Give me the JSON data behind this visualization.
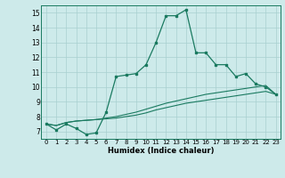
{
  "xlabel": "Humidex (Indice chaleur)",
  "x": [
    0,
    1,
    2,
    3,
    4,
    5,
    6,
    7,
    8,
    9,
    10,
    11,
    12,
    13,
    14,
    15,
    16,
    17,
    18,
    19,
    20,
    21,
    22,
    23
  ],
  "y_main": [
    7.5,
    7.1,
    7.5,
    7.2,
    6.8,
    6.9,
    8.3,
    10.7,
    10.8,
    10.9,
    11.5,
    13.0,
    14.8,
    14.8,
    15.2,
    12.3,
    12.3,
    11.5,
    11.5,
    10.7,
    10.9,
    10.2,
    10.0,
    9.5
  ],
  "y_line1": [
    7.5,
    7.4,
    7.6,
    7.7,
    7.75,
    7.8,
    7.9,
    8.0,
    8.15,
    8.3,
    8.5,
    8.7,
    8.9,
    9.05,
    9.2,
    9.35,
    9.5,
    9.6,
    9.7,
    9.8,
    9.9,
    10.0,
    10.1,
    9.5
  ],
  "y_line2": [
    7.5,
    7.4,
    7.6,
    7.7,
    7.75,
    7.8,
    7.85,
    7.9,
    8.0,
    8.1,
    8.25,
    8.45,
    8.6,
    8.75,
    8.9,
    9.0,
    9.1,
    9.2,
    9.3,
    9.4,
    9.5,
    9.6,
    9.7,
    9.5
  ],
  "line_color": "#1a7a60",
  "bg_color": "#cdeaea",
  "grid_color": "#a8d0d0",
  "ylim": [
    6.5,
    15.5
  ],
  "xlim": [
    -0.5,
    23.5
  ],
  "yticks": [
    7,
    8,
    9,
    10,
    11,
    12,
    13,
    14,
    15
  ],
  "xticks": [
    0,
    1,
    2,
    3,
    4,
    5,
    6,
    7,
    8,
    9,
    10,
    11,
    12,
    13,
    14,
    15,
    16,
    17,
    18,
    19,
    20,
    21,
    22,
    23
  ]
}
